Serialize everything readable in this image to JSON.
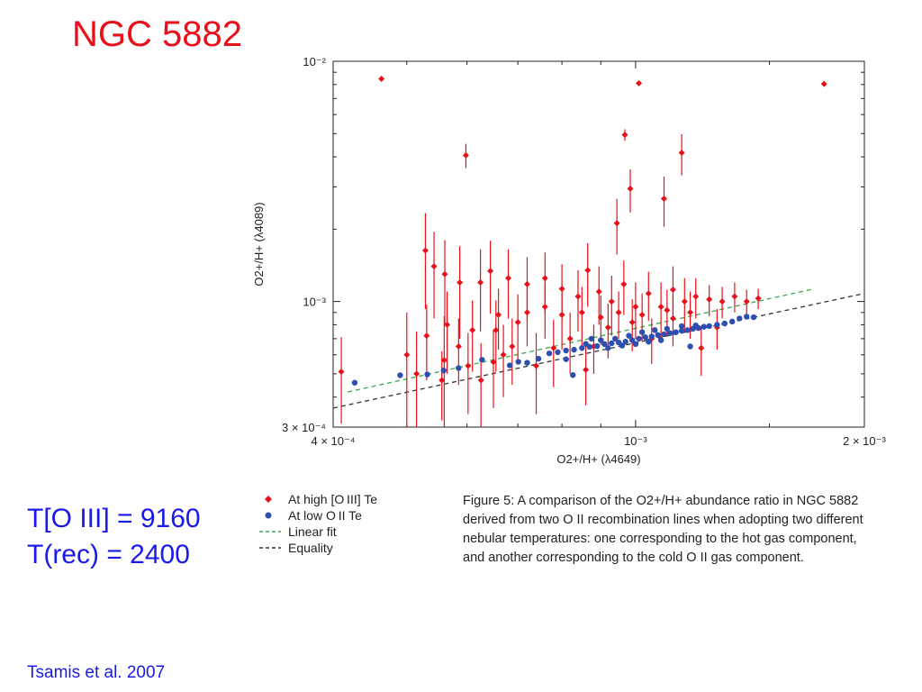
{
  "slide": {
    "title": "NGC 5882",
    "temp_oiii": "T[O III] = 9160",
    "temp_rec": "T(rec) = 2400",
    "citation": "Tsamis et al. 2007"
  },
  "legend": {
    "high": "At high [O III] Te",
    "low": "At low O II Te",
    "fit": "Linear fit",
    "equality": "Equality"
  },
  "caption": {
    "figure_label": "Figure 5:",
    "text": "A comparison of the O2+/H+ abundance ratio in NGC 5882 derived from two O II recombination lines when adopting two different nebular temperatures: one corresponding to the hot gas component, and another corresponding to the cold O II gas component."
  },
  "colors": {
    "high": "#e8101a",
    "low": "#2f4fb0",
    "fit": "#3aa84a",
    "equality": "#333333"
  },
  "chart_data": {
    "type": "scatter",
    "xlabel": "O2+/H+ (λ4649)",
    "ylabel": "O2+/H+ (λ4089)",
    "x_scale": "log",
    "y_scale": "log",
    "xlim": [
      0.0004,
      0.002
    ],
    "ylim": [
      0.0003,
      0.01
    ],
    "x_ticks": [
      {
        "value": 0.0004,
        "label": "4 × 10⁻⁴"
      },
      {
        "value": 0.001,
        "label": "10⁻³"
      },
      {
        "value": 0.002,
        "label": "2 × 10⁻³"
      }
    ],
    "y_ticks": [
      {
        "value": 0.0003,
        "label": "3 × 10⁻⁴"
      },
      {
        "value": 0.001,
        "label": "10⁻³"
      },
      {
        "value": 0.01,
        "label": "10⁻²"
      }
    ],
    "series": [
      {
        "name": "At high [O III] Te",
        "marker": "diamond",
        "color": "#e8101a",
        "points": [
          [
            0.000463,
            0.00845,
            1.7e-05
          ],
          [
            0.00101,
            0.0081,
            2.3e-05
          ],
          [
            0.00177,
            0.00805,
            2.4e-05
          ],
          [
            0.000968,
            0.00494,
            0.00027
          ],
          [
            0.000598,
            0.00406,
            0.00047
          ],
          [
            0.00115,
            0.00416,
            0.00081
          ],
          [
            0.000984,
            0.00295,
            0.0006
          ],
          [
            0.000945,
            0.00212,
            0.00055
          ],
          [
            0.00109,
            0.00268,
            0.00063
          ],
          [
            0.000529,
            0.00163,
            0.0007
          ],
          [
            0.000543,
            0.0014,
            0.00055
          ],
          [
            0.000561,
            0.0013,
            0.0005
          ],
          [
            0.000587,
            0.0012,
            0.0005
          ],
          [
            0.000625,
            0.0012,
            0.00045
          ],
          [
            0.000644,
            0.00134,
            0.00045
          ],
          [
            0.00068,
            0.00125,
            0.0004
          ],
          [
            0.00072,
            0.00118,
            0.00035
          ],
          [
            0.00076,
            0.00125,
            0.00035
          ],
          [
            0.0008,
            0.00113,
            0.0003
          ],
          [
            0.00084,
            0.00105,
            0.0003
          ],
          [
            0.000865,
            0.00135,
            0.0004
          ],
          [
            0.000895,
            0.0011,
            0.0003
          ],
          [
            0.00093,
            0.001,
            0.00028
          ],
          [
            0.000965,
            0.00118,
            0.0003
          ],
          [
            0.001,
            0.00095,
            0.00025
          ],
          [
            0.00104,
            0.00108,
            0.00025
          ],
          [
            0.00108,
            0.00095,
            0.00025
          ],
          [
            0.00112,
            0.00112,
            0.00028
          ],
          [
            0.00116,
            0.001,
            0.00025
          ],
          [
            0.0012,
            0.00105,
            0.0002
          ],
          [
            0.00125,
            0.00102,
            0.00015
          ],
          [
            0.0013,
            0.001,
            0.00015
          ],
          [
            0.00135,
            0.00105,
            0.00015
          ],
          [
            0.0014,
            0.001,
            0.00012
          ],
          [
            0.00145,
            0.00103,
            0.0001
          ],
          [
            0.00041,
            0.00051,
            0.0002
          ],
          [
            0.0005,
            0.0006,
            0.0003
          ],
          [
            0.000531,
            0.00072,
            0.00025
          ],
          [
            0.000565,
            0.0008,
            0.0003
          ],
          [
            0.00056,
            0.00057,
            0.0003
          ],
          [
            0.000515,
            0.0005,
            0.00025
          ],
          [
            0.000556,
            0.00047,
            0.00015
          ],
          [
            0.000585,
            0.00065,
            0.0002
          ],
          [
            0.000602,
            0.00054,
            0.0002
          ],
          [
            0.000626,
            0.00047,
            0.0002
          ],
          [
            0.00065,
            0.00056,
            0.0002
          ],
          [
            0.00067,
            0.0006,
            0.0002
          ],
          [
            0.000688,
            0.00065,
            0.0002
          ],
          [
            0.00074,
            0.00054,
            0.0002
          ],
          [
            0.00078,
            0.00064,
            0.0002
          ],
          [
            0.00082,
            0.0007,
            0.0002
          ],
          [
            0.00086,
            0.00052,
            0.00015
          ],
          [
            0.000881,
            0.00065,
            0.00015
          ],
          [
            0.00092,
            0.00078,
            0.0002
          ],
          [
            0.00099,
            0.00082,
            0.0002
          ],
          [
            0.00105,
            0.0007,
            0.00015
          ],
          [
            0.00112,
            0.00085,
            0.0002
          ],
          [
            0.00122,
            0.00064,
            0.00015
          ],
          [
            0.00128,
            0.00078,
            0.00015
          ],
          [
            0.00072,
            0.0009,
            0.00025
          ],
          [
            0.00076,
            0.00095,
            0.00025
          ],
          [
            0.0008,
            0.00088,
            0.00025
          ],
          [
            0.00085,
            0.0009,
            0.00025
          ],
          [
            0.0009,
            0.00086,
            0.0002
          ],
          [
            0.00095,
            0.0009,
            0.0002
          ],
          [
            0.00102,
            0.00088,
            0.0002
          ],
          [
            0.0011,
            0.00092,
            0.0002
          ],
          [
            0.00118,
            0.0009,
            0.0002
          ],
          [
            0.00066,
            0.00088,
            0.00025
          ],
          [
            0.0007,
            0.00082,
            0.00025
          ],
          [
            0.00061,
            0.00076,
            0.00025
          ],
          [
            0.000655,
            0.00076,
            0.00025
          ]
        ]
      },
      {
        "name": "At low O II Te",
        "marker": "circle",
        "color": "#2f4fb0",
        "points": [
          [
            0.000427,
            0.000459
          ],
          [
            0.00049,
            0.000493
          ],
          [
            0.000532,
            0.000497
          ],
          [
            0.000559,
            0.000516
          ],
          [
            0.000585,
            0.000528
          ],
          [
            0.000628,
            0.000572
          ],
          [
            0.000683,
            0.000542
          ],
          [
            0.000701,
            0.000561
          ],
          [
            0.00072,
            0.000556
          ],
          [
            0.000745,
            0.000578
          ],
          [
            0.00077,
            0.000608
          ],
          [
            0.00079,
            0.000615
          ],
          [
            0.00081,
            0.000625
          ],
          [
            0.00083,
            0.00063
          ],
          [
            0.00085,
            0.00064
          ],
          [
            0.00087,
            0.000648
          ],
          [
            0.00089,
            0.000652
          ],
          [
            0.00091,
            0.000665
          ],
          [
            0.00093,
            0.00067
          ],
          [
            0.00095,
            0.000675
          ],
          [
            0.00097,
            0.00068
          ],
          [
            0.00099,
            0.00069
          ],
          [
            0.00101,
            0.0007
          ],
          [
            0.00103,
            0.00071
          ],
          [
            0.00105,
            0.000715
          ],
          [
            0.00107,
            0.000725
          ],
          [
            0.00109,
            0.00073
          ],
          [
            0.00111,
            0.000738
          ],
          [
            0.00113,
            0.000745
          ],
          [
            0.00115,
            0.000755
          ],
          [
            0.00117,
            0.00076
          ],
          [
            0.00119,
            0.00077
          ],
          [
            0.00121,
            0.000775
          ],
          [
            0.00123,
            0.000785
          ],
          [
            0.00125,
            0.00079
          ],
          [
            0.00128,
            0.0008
          ],
          [
            0.00131,
            0.00081
          ],
          [
            0.00134,
            0.000825
          ],
          [
            0.00137,
            0.00085
          ],
          [
            0.0014,
            0.000865
          ],
          [
            0.00143,
            0.00086
          ],
          [
            0.00086,
            0.000666
          ],
          [
            0.0009,
            0.00069
          ],
          [
            0.00094,
            0.0007
          ],
          [
            0.00098,
            0.00072
          ],
          [
            0.00102,
            0.000745
          ],
          [
            0.00106,
            0.00076
          ],
          [
            0.0011,
            0.00077
          ],
          [
            0.00115,
            0.00079
          ],
          [
            0.0012,
            0.000795
          ],
          [
            0.000875,
            0.0007
          ],
          [
            0.00092,
            0.00064
          ],
          [
            0.00096,
            0.000655
          ],
          [
            0.001,
            0.000665
          ],
          [
            0.00104,
            0.00068
          ],
          [
            0.00108,
            0.00069
          ],
          [
            0.00118,
            0.00065
          ],
          [
            0.000827,
            0.000494
          ],
          [
            0.00081,
            0.000575
          ]
        ]
      },
      {
        "name": "Linear fit",
        "type": "line",
        "dash": "dashed",
        "color": "#3aa84a",
        "points": [
          [
            0.000418,
            0.00042
          ],
          [
            0.00172,
            0.00113
          ]
        ]
      },
      {
        "name": "Equality",
        "type": "line",
        "dash": "dashed",
        "color": "#333333",
        "points": [
          [
            0.0004,
            0.00036
          ],
          [
            0.002,
            0.00108
          ]
        ]
      }
    ]
  }
}
